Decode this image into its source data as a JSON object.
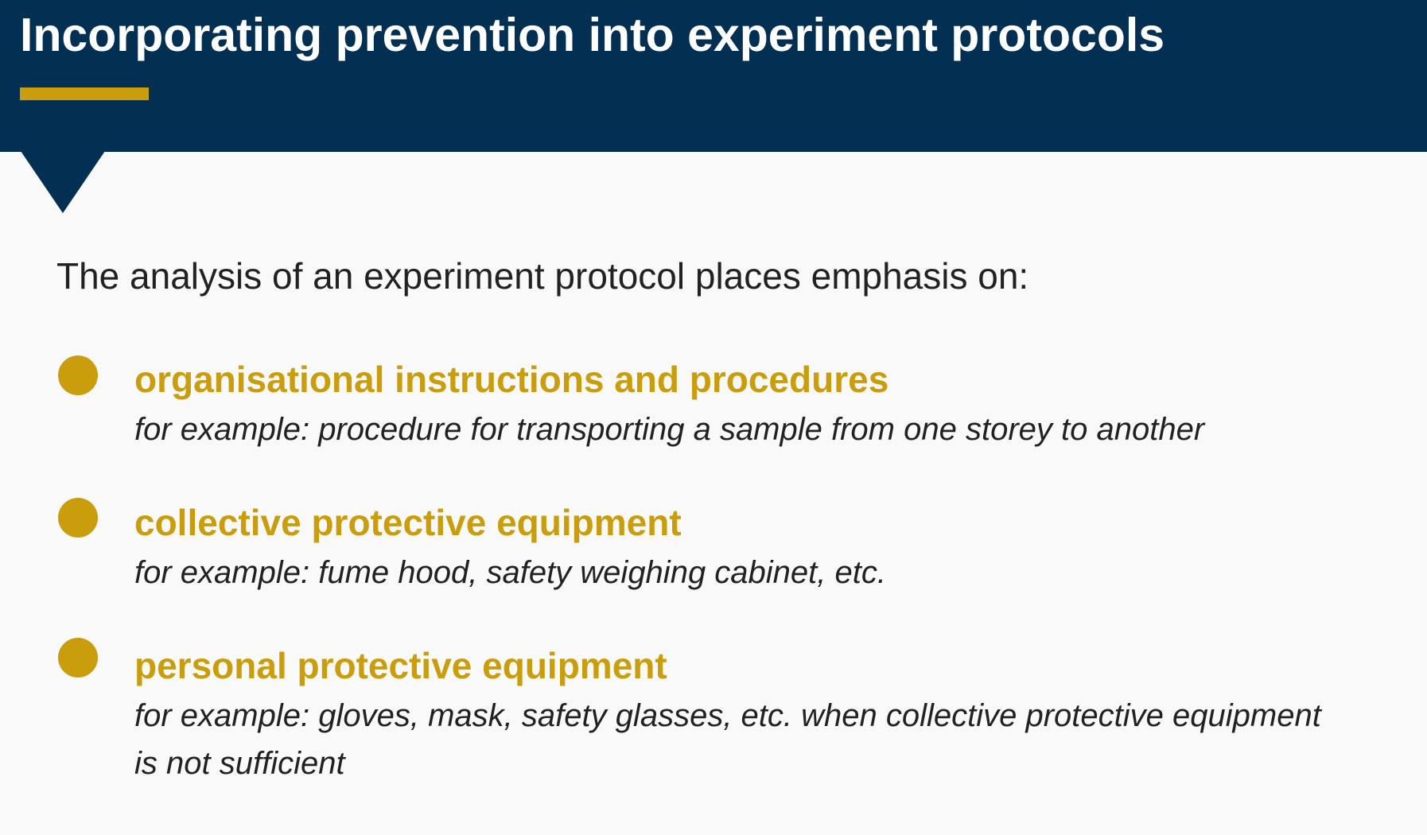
{
  "slide": {
    "title": "Incorporating prevention into experiment protocols",
    "intro": "The analysis of an experiment protocol places emphasis on:",
    "items": [
      {
        "heading": "organisational instructions and procedures",
        "example": "for example: procedure for transporting a sample from one storey to another"
      },
      {
        "heading": "collective protective equipment",
        "example": "for example: fume hood, safety weighing cabinet, etc."
      },
      {
        "heading": "personal protective equipment",
        "example": "for example: gloves, mask, safety glasses, etc. when collective protective equipment is not sufficient"
      }
    ]
  },
  "colors": {
    "header_background": "#022f52",
    "accent": "#c99d0c",
    "body_text": "#222222",
    "page_background": "#f9f9f9"
  }
}
